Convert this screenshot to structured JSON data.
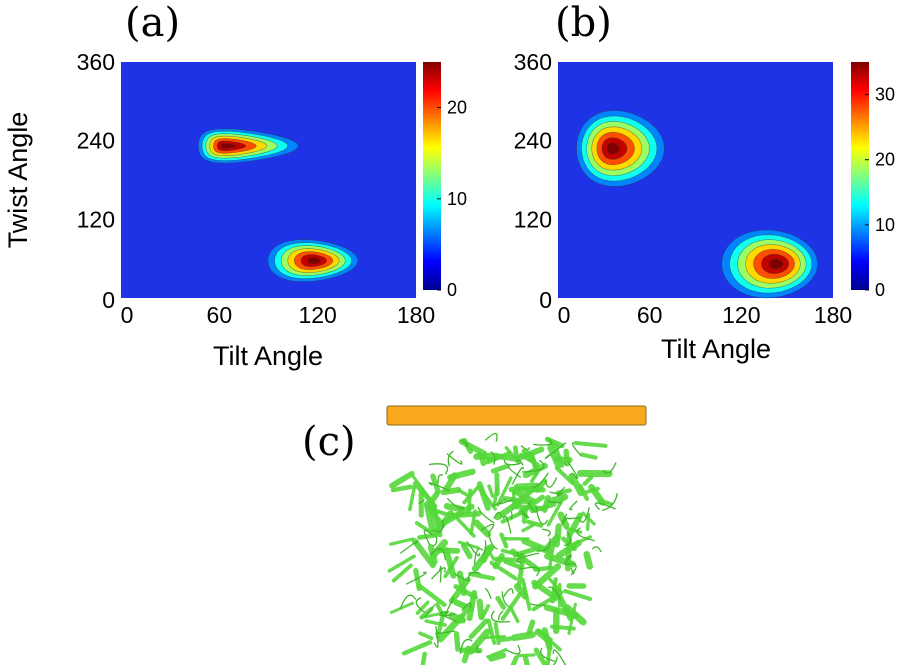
{
  "chart_data": [
    {
      "type": "heatmap",
      "panel_label": "(a)",
      "xlabel": "Tilt Angle",
      "ylabel": "Twist Angle",
      "xlim": [
        0,
        180
      ],
      "ylim": [
        0,
        360
      ],
      "xticks": [
        0,
        60,
        120,
        180
      ],
      "yticks": [
        0,
        120,
        240,
        360
      ],
      "colorbar": {
        "range": [
          0,
          25
        ],
        "ticks": [
          0,
          10,
          20
        ]
      },
      "peaks": [
        {
          "x": 67,
          "y": 232,
          "value": 25
        },
        {
          "x": 113,
          "y": 57,
          "value": 25
        }
      ]
    },
    {
      "type": "heatmap",
      "panel_label": "(b)",
      "xlabel": "Tilt Angle",
      "ylabel": "",
      "xlim": [
        0,
        180
      ],
      "ylim": [
        0,
        360
      ],
      "xticks": [
        0,
        60,
        120,
        180
      ],
      "yticks": [
        0,
        120,
        240,
        360
      ],
      "colorbar": {
        "range": [
          0,
          35
        ],
        "ticks": [
          0,
          10,
          20,
          30
        ]
      },
      "peaks": [
        {
          "x": 38,
          "y": 228,
          "value": 35
        },
        {
          "x": 137,
          "y": 52,
          "value": 35
        }
      ]
    }
  ],
  "panel_c": {
    "label": "(c)",
    "bar_color": "#F8AA1C",
    "protein_color": "#55D83A"
  },
  "colors": {
    "background_blue": "#1F33E6"
  }
}
